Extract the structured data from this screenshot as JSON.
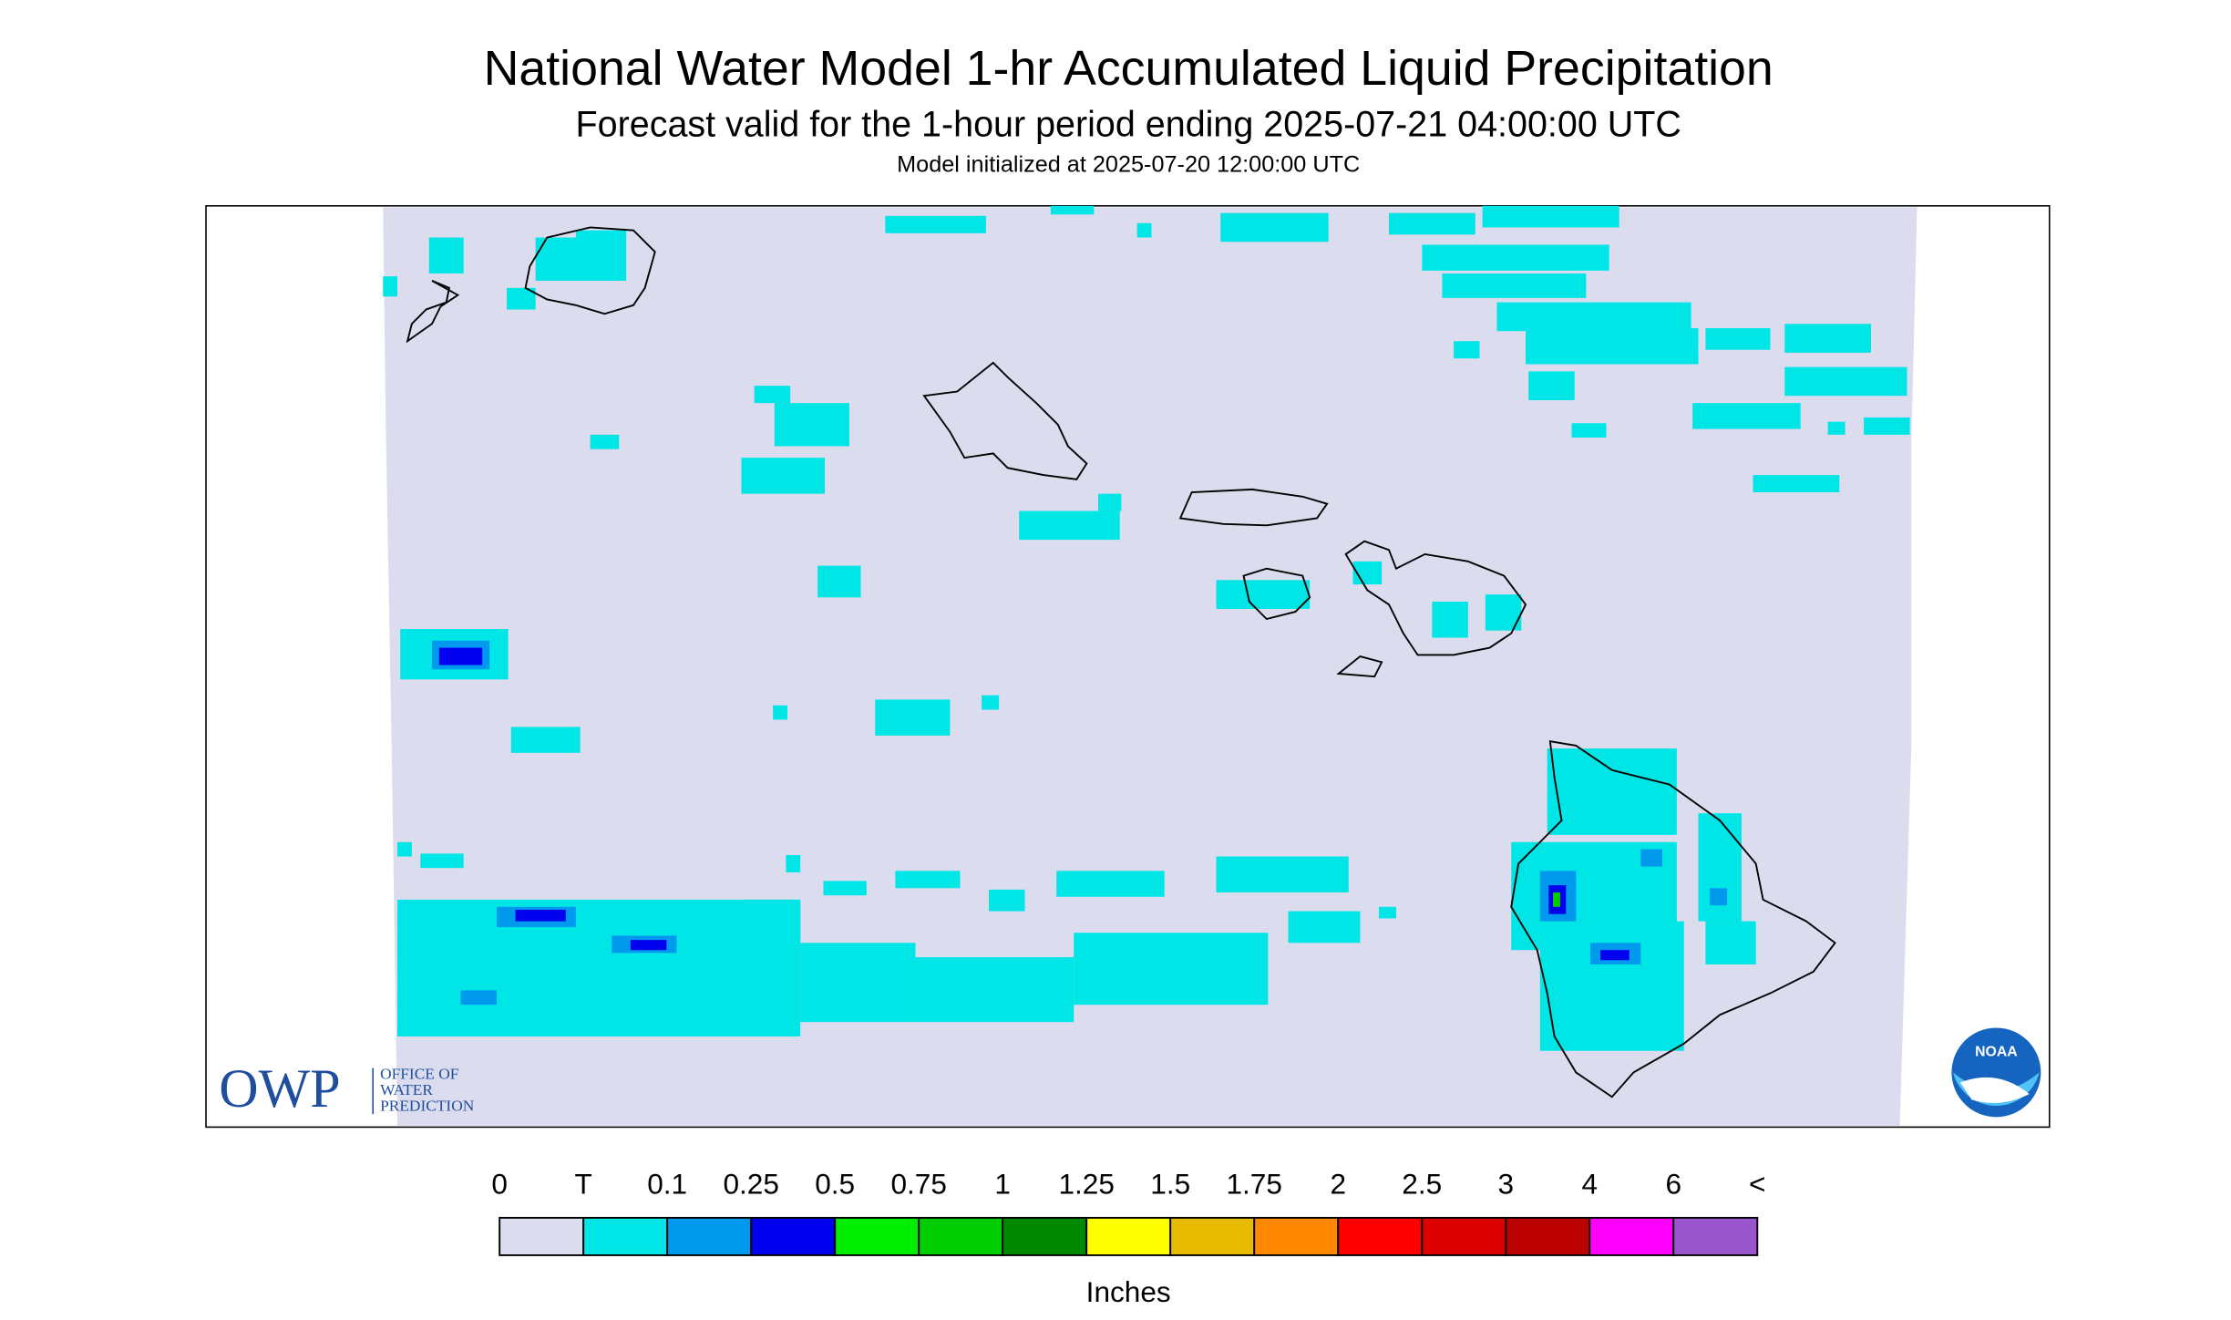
{
  "header": {
    "title": "National Water Model 1-hr Accumulated Liquid Precipitation",
    "subtitle": "Forecast valid for the 1-hour period ending 2025-07-21 04:00:00 UTC",
    "note": "Model initialized at 2025-07-20 12:00:00 UTC"
  },
  "logos": {
    "owp": "OWP",
    "owp_lines": [
      "OFFICE OF",
      "WATER",
      "PREDICTION"
    ],
    "noaa": "NOAA"
  },
  "legend": {
    "labels": [
      "0",
      "T",
      "0.1",
      "0.25",
      "0.5",
      "0.75",
      "1",
      "1.25",
      "1.5",
      "1.75",
      "2",
      "2.5",
      "3",
      "4",
      "6",
      "<"
    ],
    "colors": [
      "#dcdcef",
      "#00e5e5",
      "#0099ee",
      "#0000ee",
      "#00ee00",
      "#00cc00",
      "#008800",
      "#ffff00",
      "#e6bb00",
      "#ff8800",
      "#ff0000",
      "#dd0000",
      "#bb0000",
      "#ff00ff",
      "#9955cc"
    ],
    "unit": "Inches"
  }
}
